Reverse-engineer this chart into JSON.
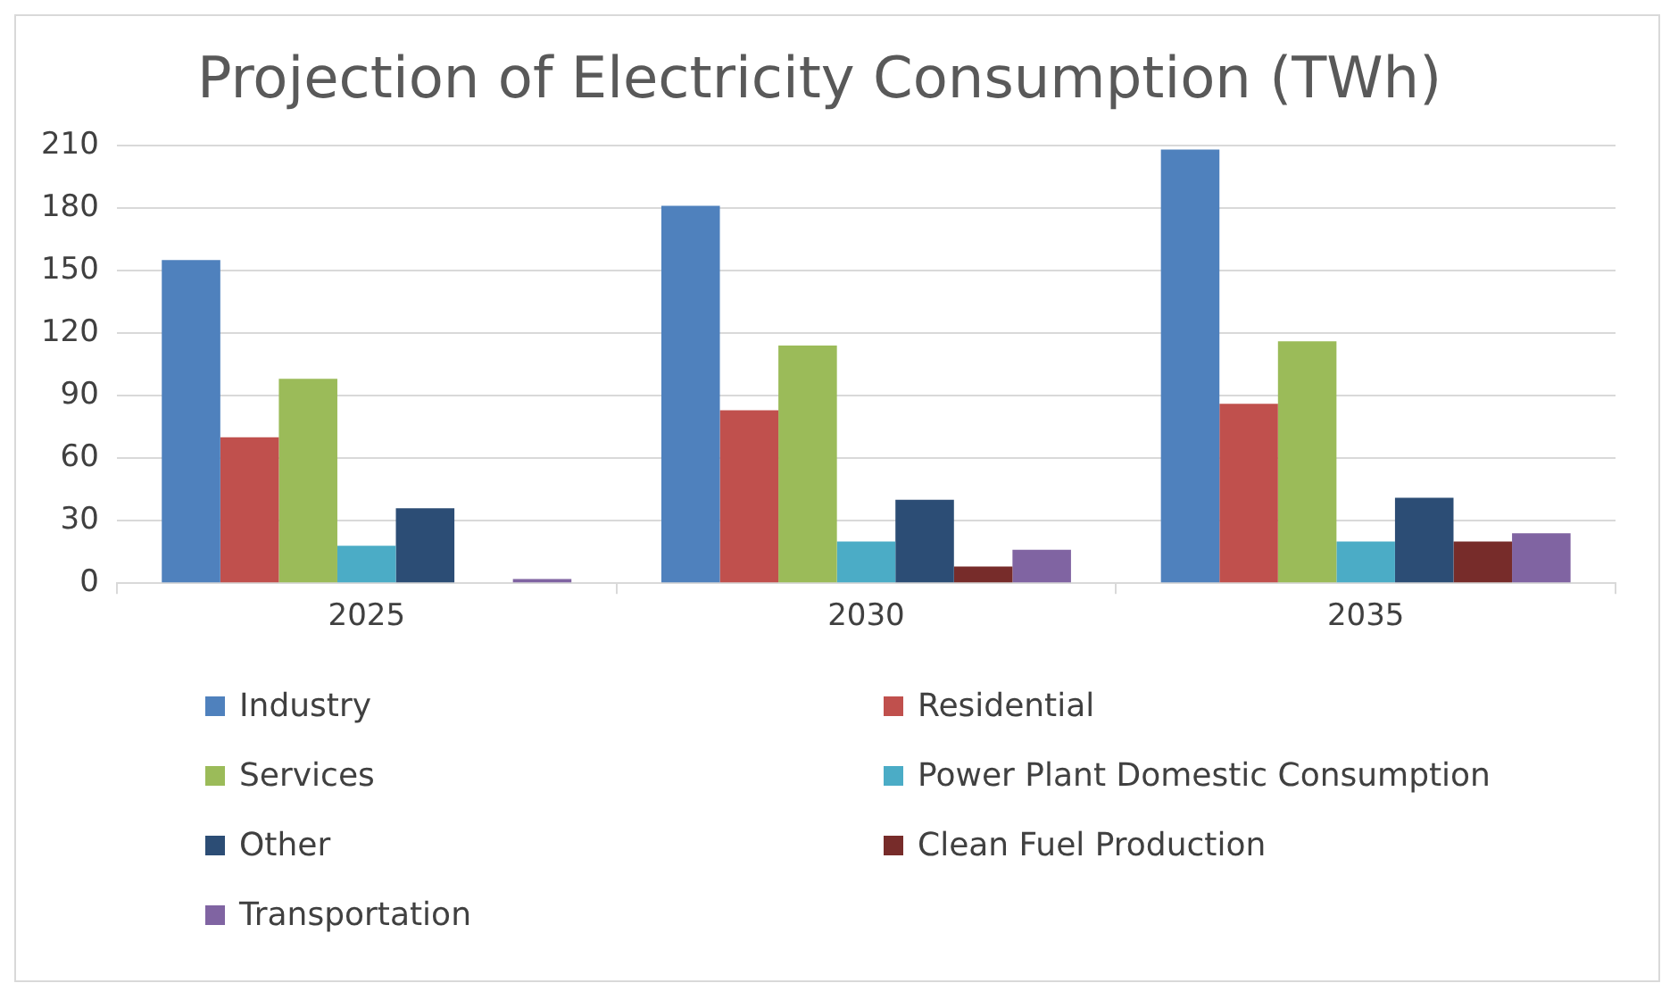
{
  "chart_data": {
    "type": "bar",
    "title": "Projection of Electricity Consumption (TWh)",
    "categories": [
      "2025",
      "2030",
      "2035"
    ],
    "series": [
      {
        "name": "Industry",
        "color": "#4f81bd",
        "values": [
          155,
          181,
          208
        ]
      },
      {
        "name": "Residential",
        "color": "#c0504d",
        "values": [
          70,
          83,
          86
        ]
      },
      {
        "name": "Services",
        "color": "#9bbb59",
        "values": [
          98,
          114,
          116
        ]
      },
      {
        "name": "Power Plant Domestic Consumption",
        "color": "#4bacc6",
        "values": [
          18,
          20,
          20
        ]
      },
      {
        "name": "Other",
        "color": "#2c4d75",
        "values": [
          36,
          40,
          41
        ]
      },
      {
        "name": "Clean Fuel Production",
        "color": "#772c2a",
        "values": [
          0,
          8,
          20
        ]
      },
      {
        "name": "Transportation",
        "color": "#8064a2",
        "values": [
          2,
          16,
          24
        ]
      }
    ],
    "ylim": [
      0,
      210
    ],
    "yticks": [
      0,
      30,
      60,
      90,
      120,
      150,
      180,
      210
    ],
    "grid": "y",
    "legend": "bottom"
  }
}
